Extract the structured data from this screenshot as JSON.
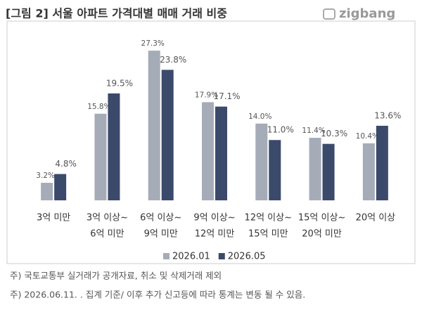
{
  "chart_data": {
    "type": "bar",
    "title": "[그림 2] 서울 아파트 가격대별 매매 거래 비중",
    "logo": "zigbang",
    "categories": [
      [
        "3억 미만"
      ],
      [
        "3억 이상~",
        "6억 미만"
      ],
      [
        "6억 이상~",
        "9억 미만"
      ],
      [
        "9억 이상~",
        "12억 미만"
      ],
      [
        "12억 이상~",
        "15억 미만"
      ],
      [
        "15억 이상~",
        "20억 미만"
      ],
      [
        "20억 이상"
      ]
    ],
    "series": [
      {
        "name": "2026.01",
        "color": "#a5acb8",
        "label_color": "#555555",
        "values": [
          3.2,
          15.8,
          27.3,
          17.9,
          14.0,
          11.4,
          10.4
        ],
        "value_labels": [
          "3.2%",
          "15.8%",
          "27.3%",
          "17.9%",
          "14.0%",
          "11.4%",
          "10.4%"
        ]
      },
      {
        "name": "2026.05",
        "color": "#3b4a6b",
        "label_color": "#f08a3c",
        "values": [
          4.8,
          19.5,
          23.8,
          17.1,
          11.0,
          10.3,
          13.6
        ],
        "value_labels": [
          "4.8%",
          "19.5%",
          "23.8%",
          "17.1%",
          "11.0%",
          "10.3%",
          "13.6%"
        ]
      }
    ],
    "ylim": [
      0,
      30
    ],
    "notes": [
      "주) 국토교통부 실거래가 공개자료, 취소 및 삭제거래 제외",
      "주) 2026.06.11. . 집계 기준/ 이후 추가 신고등에 따라 통계는 변동 될 수 있음."
    ]
  }
}
